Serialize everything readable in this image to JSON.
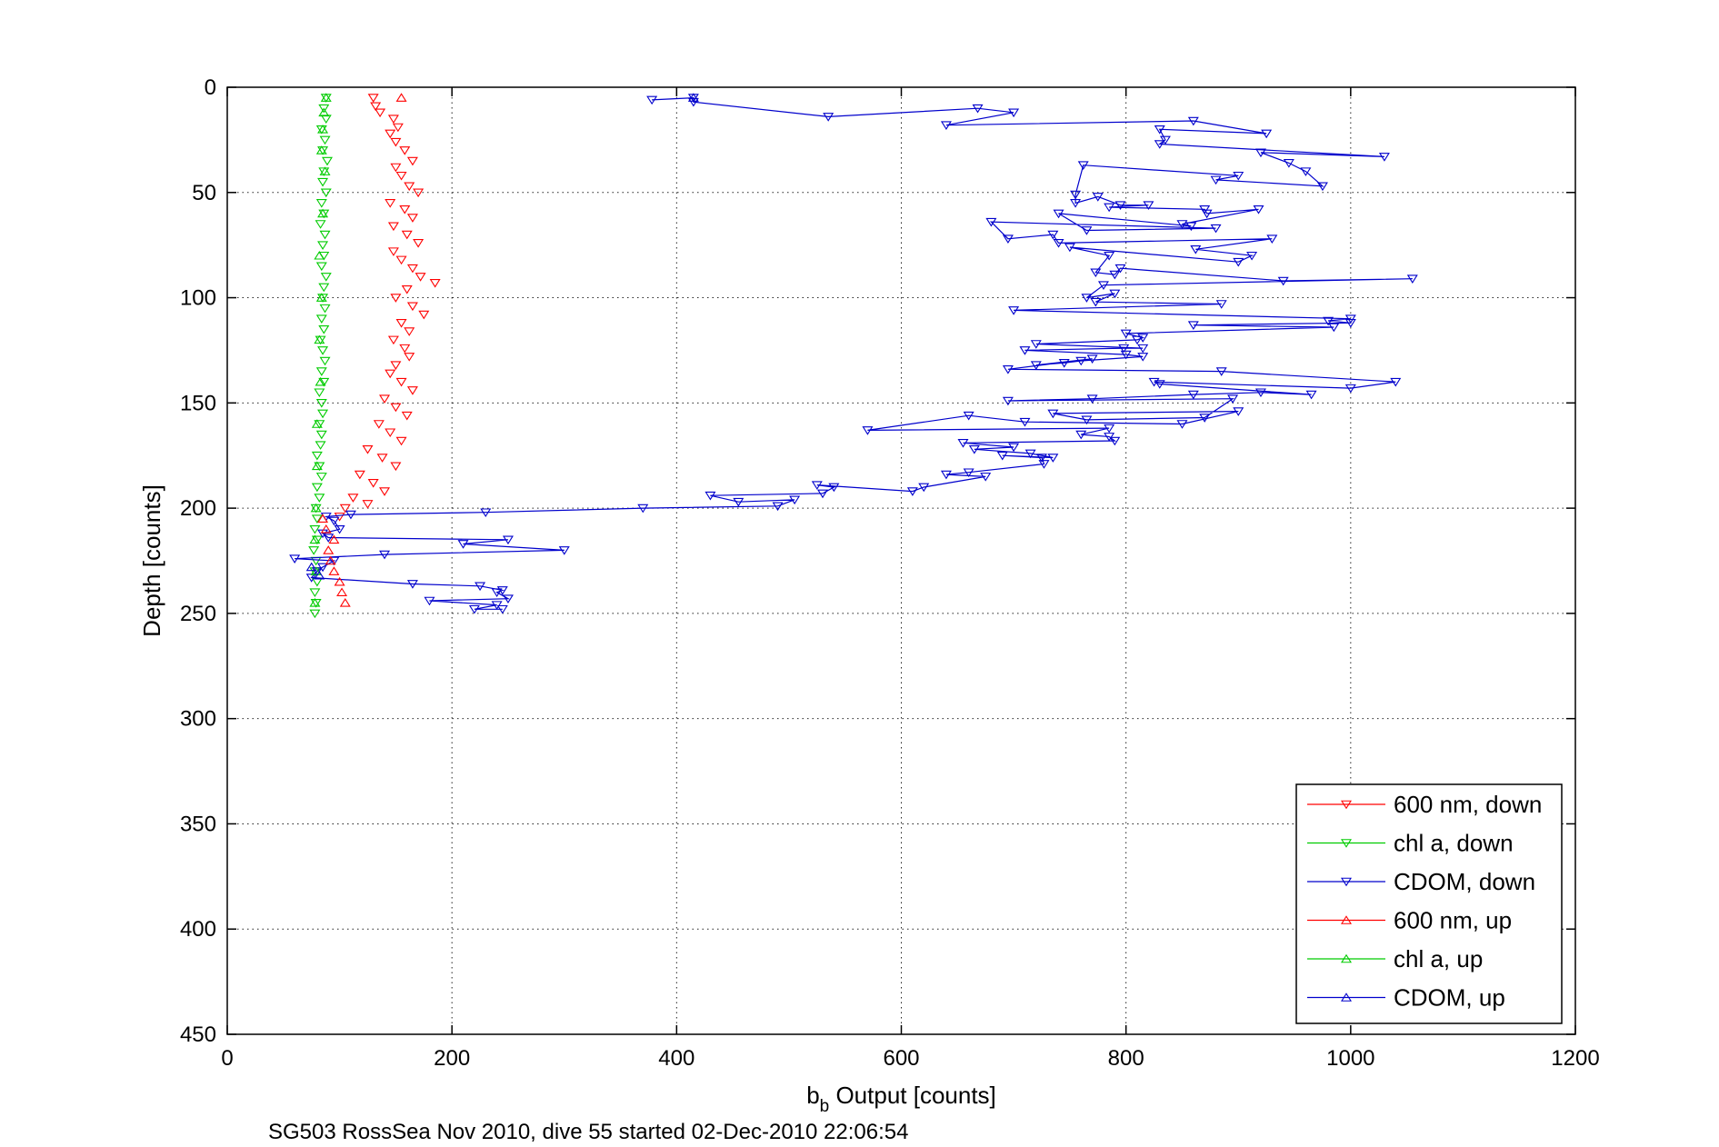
{
  "chart_data": {
    "type": "scatter",
    "xlabel_main": "b",
    "xlabel_sub": "b",
    "xlabel_rest": " Output [counts]",
    "ylabel": "Depth [counts]",
    "caption": "SG503 RossSea Nov 2010, dive 55 started 02-Dec-2010 22:06:54",
    "xlim": [
      0,
      1200
    ],
    "ylim": [
      0,
      450
    ],
    "y_reversed": true,
    "grid": true,
    "legend_position": "bottom-right",
    "xticks": [
      "0",
      "200",
      "400",
      "600",
      "800",
      "1000",
      "1200"
    ],
    "yticks": [
      "0",
      "50",
      "100",
      "150",
      "200",
      "250",
      "300",
      "350",
      "400",
      "450"
    ],
    "series": [
      {
        "name": "600 nm, down",
        "color": "#ff0000",
        "marker": "triangle-down",
        "line": false,
        "points": [
          [
            130,
            5
          ],
          [
            132,
            9
          ],
          [
            136,
            12
          ],
          [
            148,
            15
          ],
          [
            152,
            19
          ],
          [
            145,
            22
          ],
          [
            150,
            26
          ],
          [
            158,
            30
          ],
          [
            165,
            35
          ],
          [
            150,
            38
          ],
          [
            155,
            42
          ],
          [
            162,
            47
          ],
          [
            170,
            50
          ],
          [
            145,
            55
          ],
          [
            158,
            58
          ],
          [
            165,
            62
          ],
          [
            148,
            66
          ],
          [
            160,
            70
          ],
          [
            170,
            74
          ],
          [
            148,
            78
          ],
          [
            155,
            82
          ],
          [
            165,
            86
          ],
          [
            172,
            90
          ],
          [
            185,
            93
          ],
          [
            160,
            96
          ],
          [
            150,
            100
          ],
          [
            165,
            104
          ],
          [
            175,
            108
          ],
          [
            155,
            112
          ],
          [
            162,
            116
          ],
          [
            148,
            120
          ],
          [
            158,
            124
          ],
          [
            162,
            128
          ],
          [
            150,
            132
          ],
          [
            145,
            136
          ],
          [
            155,
            140
          ],
          [
            165,
            144
          ],
          [
            140,
            148
          ],
          [
            150,
            152
          ],
          [
            160,
            156
          ],
          [
            135,
            160
          ],
          [
            145,
            164
          ],
          [
            155,
            168
          ],
          [
            125,
            172
          ],
          [
            138,
            176
          ],
          [
            150,
            180
          ],
          [
            118,
            184
          ],
          [
            130,
            188
          ],
          [
            140,
            192
          ],
          [
            112,
            195
          ],
          [
            125,
            198
          ],
          [
            105,
            200
          ],
          [
            100,
            204
          ]
        ]
      },
      {
        "name": "chl a, down",
        "color": "#00cc00",
        "marker": "triangle-down",
        "line": false,
        "points": [
          [
            88,
            5
          ],
          [
            86,
            10
          ],
          [
            88,
            15
          ],
          [
            84,
            20
          ],
          [
            87,
            25
          ],
          [
            85,
            30
          ],
          [
            89,
            35
          ],
          [
            86,
            40
          ],
          [
            85,
            45
          ],
          [
            88,
            50
          ],
          [
            84,
            55
          ],
          [
            86,
            60
          ],
          [
            83,
            65
          ],
          [
            87,
            70
          ],
          [
            85,
            75
          ],
          [
            86,
            80
          ],
          [
            84,
            85
          ],
          [
            88,
            90
          ],
          [
            86,
            95
          ],
          [
            85,
            100
          ],
          [
            87,
            105
          ],
          [
            84,
            110
          ],
          [
            86,
            115
          ],
          [
            83,
            120
          ],
          [
            85,
            125
          ],
          [
            87,
            130
          ],
          [
            84,
            135
          ],
          [
            86,
            140
          ],
          [
            82,
            145
          ],
          [
            84,
            150
          ],
          [
            85,
            155
          ],
          [
            82,
            160
          ],
          [
            84,
            165
          ],
          [
            83,
            170
          ],
          [
            80,
            175
          ],
          [
            82,
            180
          ],
          [
            84,
            185
          ],
          [
            80,
            190
          ],
          [
            82,
            195
          ],
          [
            79,
            200
          ],
          [
            80,
            205
          ],
          [
            78,
            210
          ],
          [
            80,
            215
          ],
          [
            77,
            220
          ],
          [
            79,
            225
          ],
          [
            78,
            230
          ],
          [
            80,
            235
          ],
          [
            78,
            240
          ],
          [
            79,
            245
          ],
          [
            78,
            250
          ]
        ]
      },
      {
        "name": "CDOM, down",
        "color": "#0000cc",
        "marker": "triangle-down",
        "line": true,
        "points": [
          [
            378,
            6
          ],
          [
            415,
            5
          ],
          [
            415,
            7
          ],
          [
            535,
            14
          ],
          [
            668,
            10
          ],
          [
            700,
            12
          ],
          [
            640,
            18
          ],
          [
            860,
            16
          ],
          [
            925,
            22
          ],
          [
            830,
            20
          ],
          [
            835,
            25
          ],
          [
            830,
            27
          ],
          [
            1030,
            33
          ],
          [
            920,
            31
          ],
          [
            945,
            36
          ],
          [
            960,
            40
          ],
          [
            975,
            47
          ],
          [
            880,
            44
          ],
          [
            900,
            42
          ],
          [
            762,
            37
          ],
          [
            755,
            51
          ],
          [
            755,
            55
          ],
          [
            775,
            52
          ],
          [
            795,
            56
          ],
          [
            820,
            56
          ],
          [
            785,
            57
          ],
          [
            870,
            58
          ],
          [
            872,
            60
          ],
          [
            918,
            58
          ],
          [
            850,
            65
          ],
          [
            858,
            66
          ],
          [
            740,
            60
          ],
          [
            765,
            68
          ],
          [
            880,
            67
          ],
          [
            680,
            64
          ],
          [
            695,
            72
          ],
          [
            735,
            70
          ],
          [
            740,
            74
          ],
          [
            930,
            72
          ],
          [
            862,
            77
          ],
          [
            912,
            80
          ],
          [
            900,
            83
          ],
          [
            750,
            76
          ],
          [
            785,
            80
          ],
          [
            773,
            88
          ],
          [
            790,
            89
          ],
          [
            795,
            86
          ],
          [
            940,
            92
          ],
          [
            1055,
            91
          ],
          [
            780,
            94
          ],
          [
            765,
            100
          ],
          [
            790,
            98
          ],
          [
            773,
            102
          ],
          [
            885,
            103
          ],
          [
            700,
            106
          ],
          [
            1000,
            110
          ],
          [
            980,
            111
          ],
          [
            1000,
            112
          ],
          [
            860,
            113
          ],
          [
            985,
            114
          ],
          [
            800,
            117
          ],
          [
            815,
            119
          ],
          [
            810,
            120
          ],
          [
            720,
            122
          ],
          [
            815,
            124
          ],
          [
            798,
            124
          ],
          [
            710,
            125
          ],
          [
            800,
            127
          ],
          [
            815,
            128
          ],
          [
            760,
            130
          ],
          [
            745,
            131
          ],
          [
            720,
            132
          ],
          [
            770,
            129
          ],
          [
            695,
            134
          ],
          [
            885,
            135
          ],
          [
            1040,
            140
          ],
          [
            1000,
            143
          ],
          [
            825,
            140
          ],
          [
            830,
            141
          ],
          [
            965,
            146
          ],
          [
            920,
            145
          ],
          [
            860,
            146
          ],
          [
            770,
            148
          ],
          [
            695,
            149
          ],
          [
            895,
            148
          ],
          [
            870,
            157
          ],
          [
            765,
            158
          ],
          [
            735,
            155
          ],
          [
            900,
            154
          ],
          [
            850,
            160
          ],
          [
            710,
            159
          ],
          [
            660,
            156
          ],
          [
            570,
            163
          ],
          [
            785,
            162
          ],
          [
            760,
            165
          ],
          [
            785,
            166
          ],
          [
            790,
            168
          ],
          [
            655,
            169
          ],
          [
            700,
            171
          ],
          [
            665,
            172
          ],
          [
            715,
            174
          ],
          [
            735,
            176
          ],
          [
            690,
            175
          ],
          [
            725,
            176
          ],
          [
            727,
            179
          ],
          [
            660,
            183
          ],
          [
            640,
            184
          ],
          [
            675,
            185
          ],
          [
            620,
            190
          ],
          [
            610,
            192
          ],
          [
            525,
            189
          ],
          [
            540,
            190
          ],
          [
            530,
            193
          ],
          [
            430,
            194
          ],
          [
            455,
            197
          ],
          [
            505,
            196
          ],
          [
            490,
            199
          ],
          [
            370,
            200
          ],
          [
            230,
            202
          ],
          [
            110,
            203
          ],
          [
            88,
            204
          ],
          [
            95,
            206
          ],
          [
            100,
            210
          ],
          [
            85,
            212
          ],
          [
            90,
            214
          ],
          [
            250,
            215
          ],
          [
            210,
            217
          ],
          [
            300,
            220
          ],
          [
            140,
            222
          ],
          [
            60,
            224
          ],
          [
            95,
            225
          ],
          [
            85,
            228
          ],
          [
            80,
            230
          ],
          [
            75,
            233
          ],
          [
            165,
            236
          ],
          [
            225,
            237
          ],
          [
            245,
            239
          ],
          [
            240,
            240
          ],
          [
            250,
            243
          ],
          [
            180,
            244
          ],
          [
            240,
            246
          ],
          [
            220,
            248
          ],
          [
            245,
            248
          ]
        ]
      },
      {
        "name": "600 nm, up",
        "color": "#ff0000",
        "marker": "triangle-up",
        "line": false,
        "points": [
          [
            155,
            5
          ],
          [
            85,
            205
          ],
          [
            88,
            210
          ],
          [
            95,
            215
          ],
          [
            90,
            220
          ],
          [
            92,
            225
          ],
          [
            95,
            230
          ],
          [
            100,
            235
          ],
          [
            102,
            240
          ],
          [
            105,
            245
          ]
        ]
      },
      {
        "name": "chl a, up",
        "color": "#00cc00",
        "marker": "triangle-up",
        "line": false,
        "points": [
          [
            88,
            5
          ],
          [
            86,
            12
          ],
          [
            85,
            20
          ],
          [
            84,
            30
          ],
          [
            87,
            40
          ],
          [
            85,
            60
          ],
          [
            82,
            80
          ],
          [
            84,
            100
          ],
          [
            82,
            120
          ],
          [
            83,
            140
          ],
          [
            80,
            160
          ],
          [
            80,
            180
          ],
          [
            79,
            200
          ],
          [
            78,
            215
          ],
          [
            79,
            230
          ],
          [
            78,
            245
          ]
        ]
      },
      {
        "name": "CDOM, up",
        "color": "#0000cc",
        "marker": "triangle-up",
        "line": false,
        "points": [
          [
            415,
            5
          ],
          [
            75,
            228
          ],
          [
            82,
            232
          ]
        ]
      }
    ]
  }
}
